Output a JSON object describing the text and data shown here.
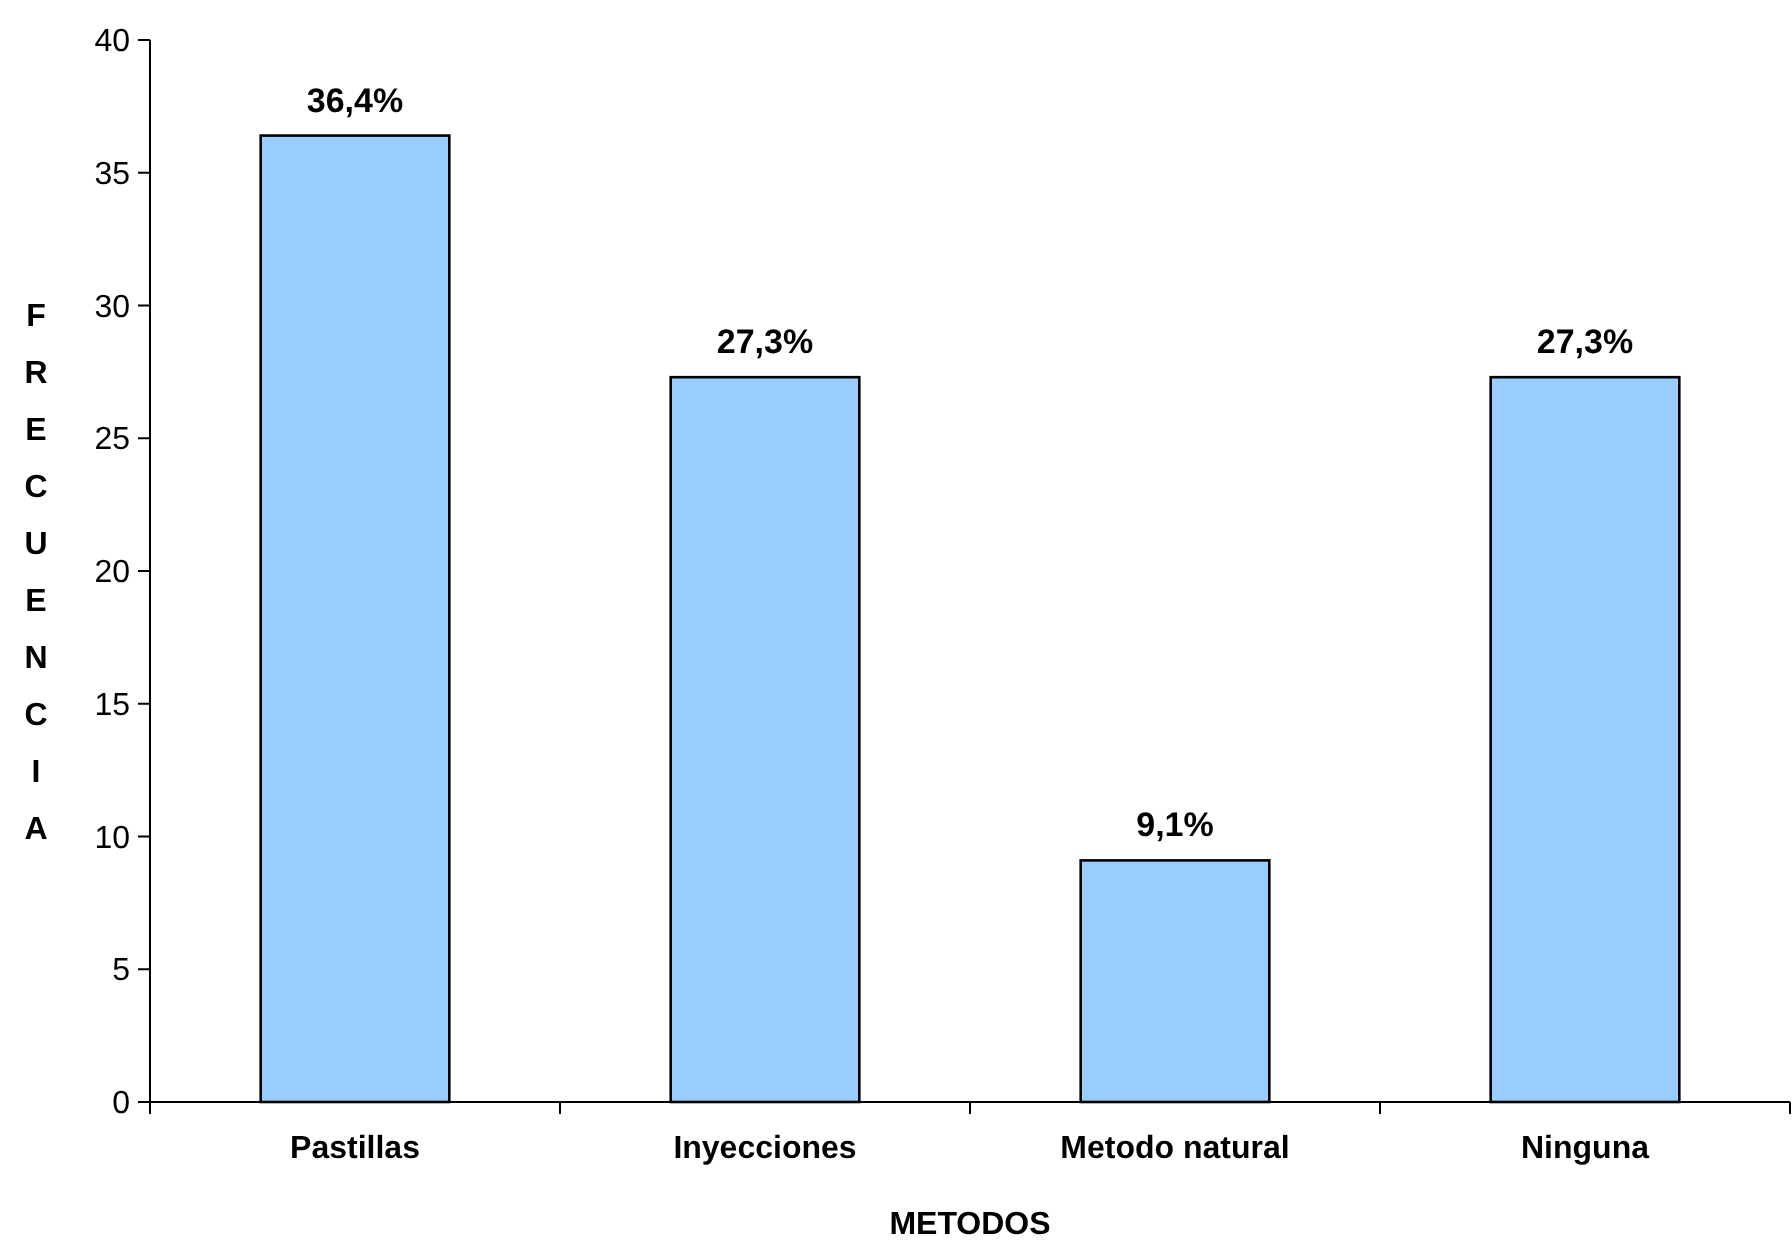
{
  "chart_data": {
    "type": "bar",
    "xlabel": "METODOS",
    "ylabel": "FRECUENCIA",
    "categories": [
      "Pastillas",
      "Inyecciones",
      "Metodo natural",
      "Ninguna"
    ],
    "values": [
      36.4,
      27.3,
      9.1,
      27.3
    ],
    "value_labels": [
      "36,4%",
      "27,3%",
      "9,1%",
      "27,3%"
    ],
    "color": "#99ccff",
    "ylim": [
      0,
      40
    ],
    "yticks": [
      0,
      5,
      10,
      15,
      20,
      25,
      30,
      35,
      40
    ],
    "grid": false
  }
}
